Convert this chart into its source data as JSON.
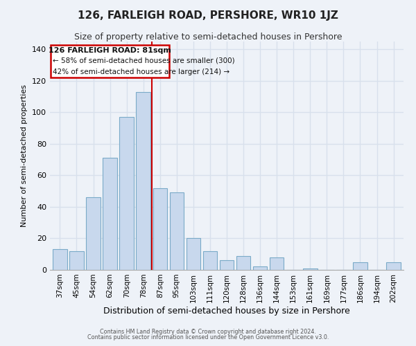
{
  "title": "126, FARLEIGH ROAD, PERSHORE, WR10 1JZ",
  "subtitle": "Size of property relative to semi-detached houses in Pershore",
  "xlabel": "Distribution of semi-detached houses by size in Pershore",
  "ylabel": "Number of semi-detached properties",
  "categories": [
    "37sqm",
    "45sqm",
    "54sqm",
    "62sqm",
    "70sqm",
    "78sqm",
    "87sqm",
    "95sqm",
    "103sqm",
    "111sqm",
    "120sqm",
    "128sqm",
    "136sqm",
    "144sqm",
    "153sqm",
    "161sqm",
    "169sqm",
    "177sqm",
    "186sqm",
    "194sqm",
    "202sqm"
  ],
  "values": [
    13,
    12,
    46,
    71,
    97,
    113,
    52,
    49,
    20,
    12,
    6,
    9,
    2,
    8,
    0,
    1,
    0,
    0,
    5,
    0,
    5
  ],
  "bar_color": "#c8d8ed",
  "bar_edge_color": "#7aaac8",
  "vline_color": "#cc0000",
  "vline_x": 6,
  "ylim": [
    0,
    145
  ],
  "yticks": [
    0,
    20,
    40,
    60,
    80,
    100,
    120,
    140
  ],
  "annotation_title": "126 FARLEIGH ROAD: 81sqm",
  "annotation_line1": "← 58% of semi-detached houses are smaller (300)",
  "annotation_line2": "42% of semi-detached houses are larger (214) →",
  "annotation_box_color": "#ffffff",
  "annotation_box_edge_color": "#cc0000",
  "footer1": "Contains HM Land Registry data © Crown copyright and database right 2024.",
  "footer2": "Contains public sector information licensed under the Open Government Licence v3.0.",
  "background_color": "#eef2f8",
  "grid_color": "#d8e0ec",
  "title_fontsize": 11,
  "subtitle_fontsize": 9
}
